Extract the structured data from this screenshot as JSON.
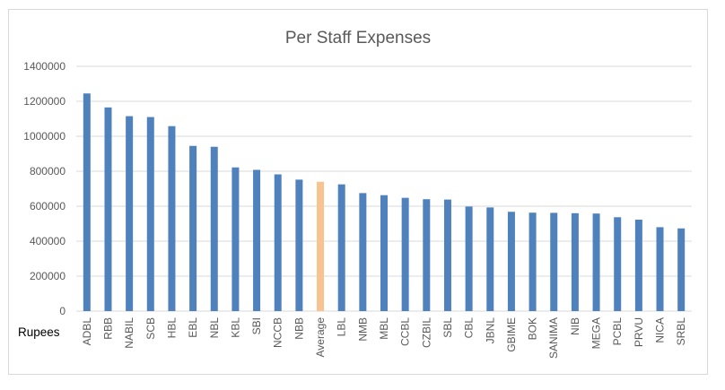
{
  "chart_data": {
    "type": "bar",
    "title": "Per Staff Expenses",
    "unit_label": "Rupees",
    "categories": [
      "ADBL",
      "RBB",
      "NABIL",
      "SCB",
      "HBL",
      "EBL",
      "NBL",
      "KBL",
      "SBI",
      "NCCB",
      "NBB",
      "Average",
      "LBL",
      "NMB",
      "MBL",
      "CCBL",
      "CZBIL",
      "SBL",
      "CBL",
      "JBNL",
      "GBIME",
      "BOK",
      "SANIMA",
      "NIB",
      "MEGA",
      "PCBL",
      "PRVU",
      "NICA",
      "SRBL"
    ],
    "values": [
      1245000,
      1165000,
      1115000,
      1110000,
      1058000,
      945000,
      940000,
      822000,
      808000,
      782000,
      752000,
      740000,
      725000,
      675000,
      663000,
      648000,
      640000,
      638000,
      598000,
      593000,
      568000,
      563000,
      562000,
      560000,
      558000,
      537000,
      523000,
      480000,
      473000
    ],
    "highlight_index": 11,
    "ylim": [
      0,
      1400000
    ],
    "yticks": [
      0,
      200000,
      400000,
      600000,
      800000,
      1000000,
      1200000,
      1400000
    ],
    "grid": true,
    "legend": "none",
    "colors": {
      "bar": "#4f81bd",
      "highlight": "#f8c391"
    }
  }
}
